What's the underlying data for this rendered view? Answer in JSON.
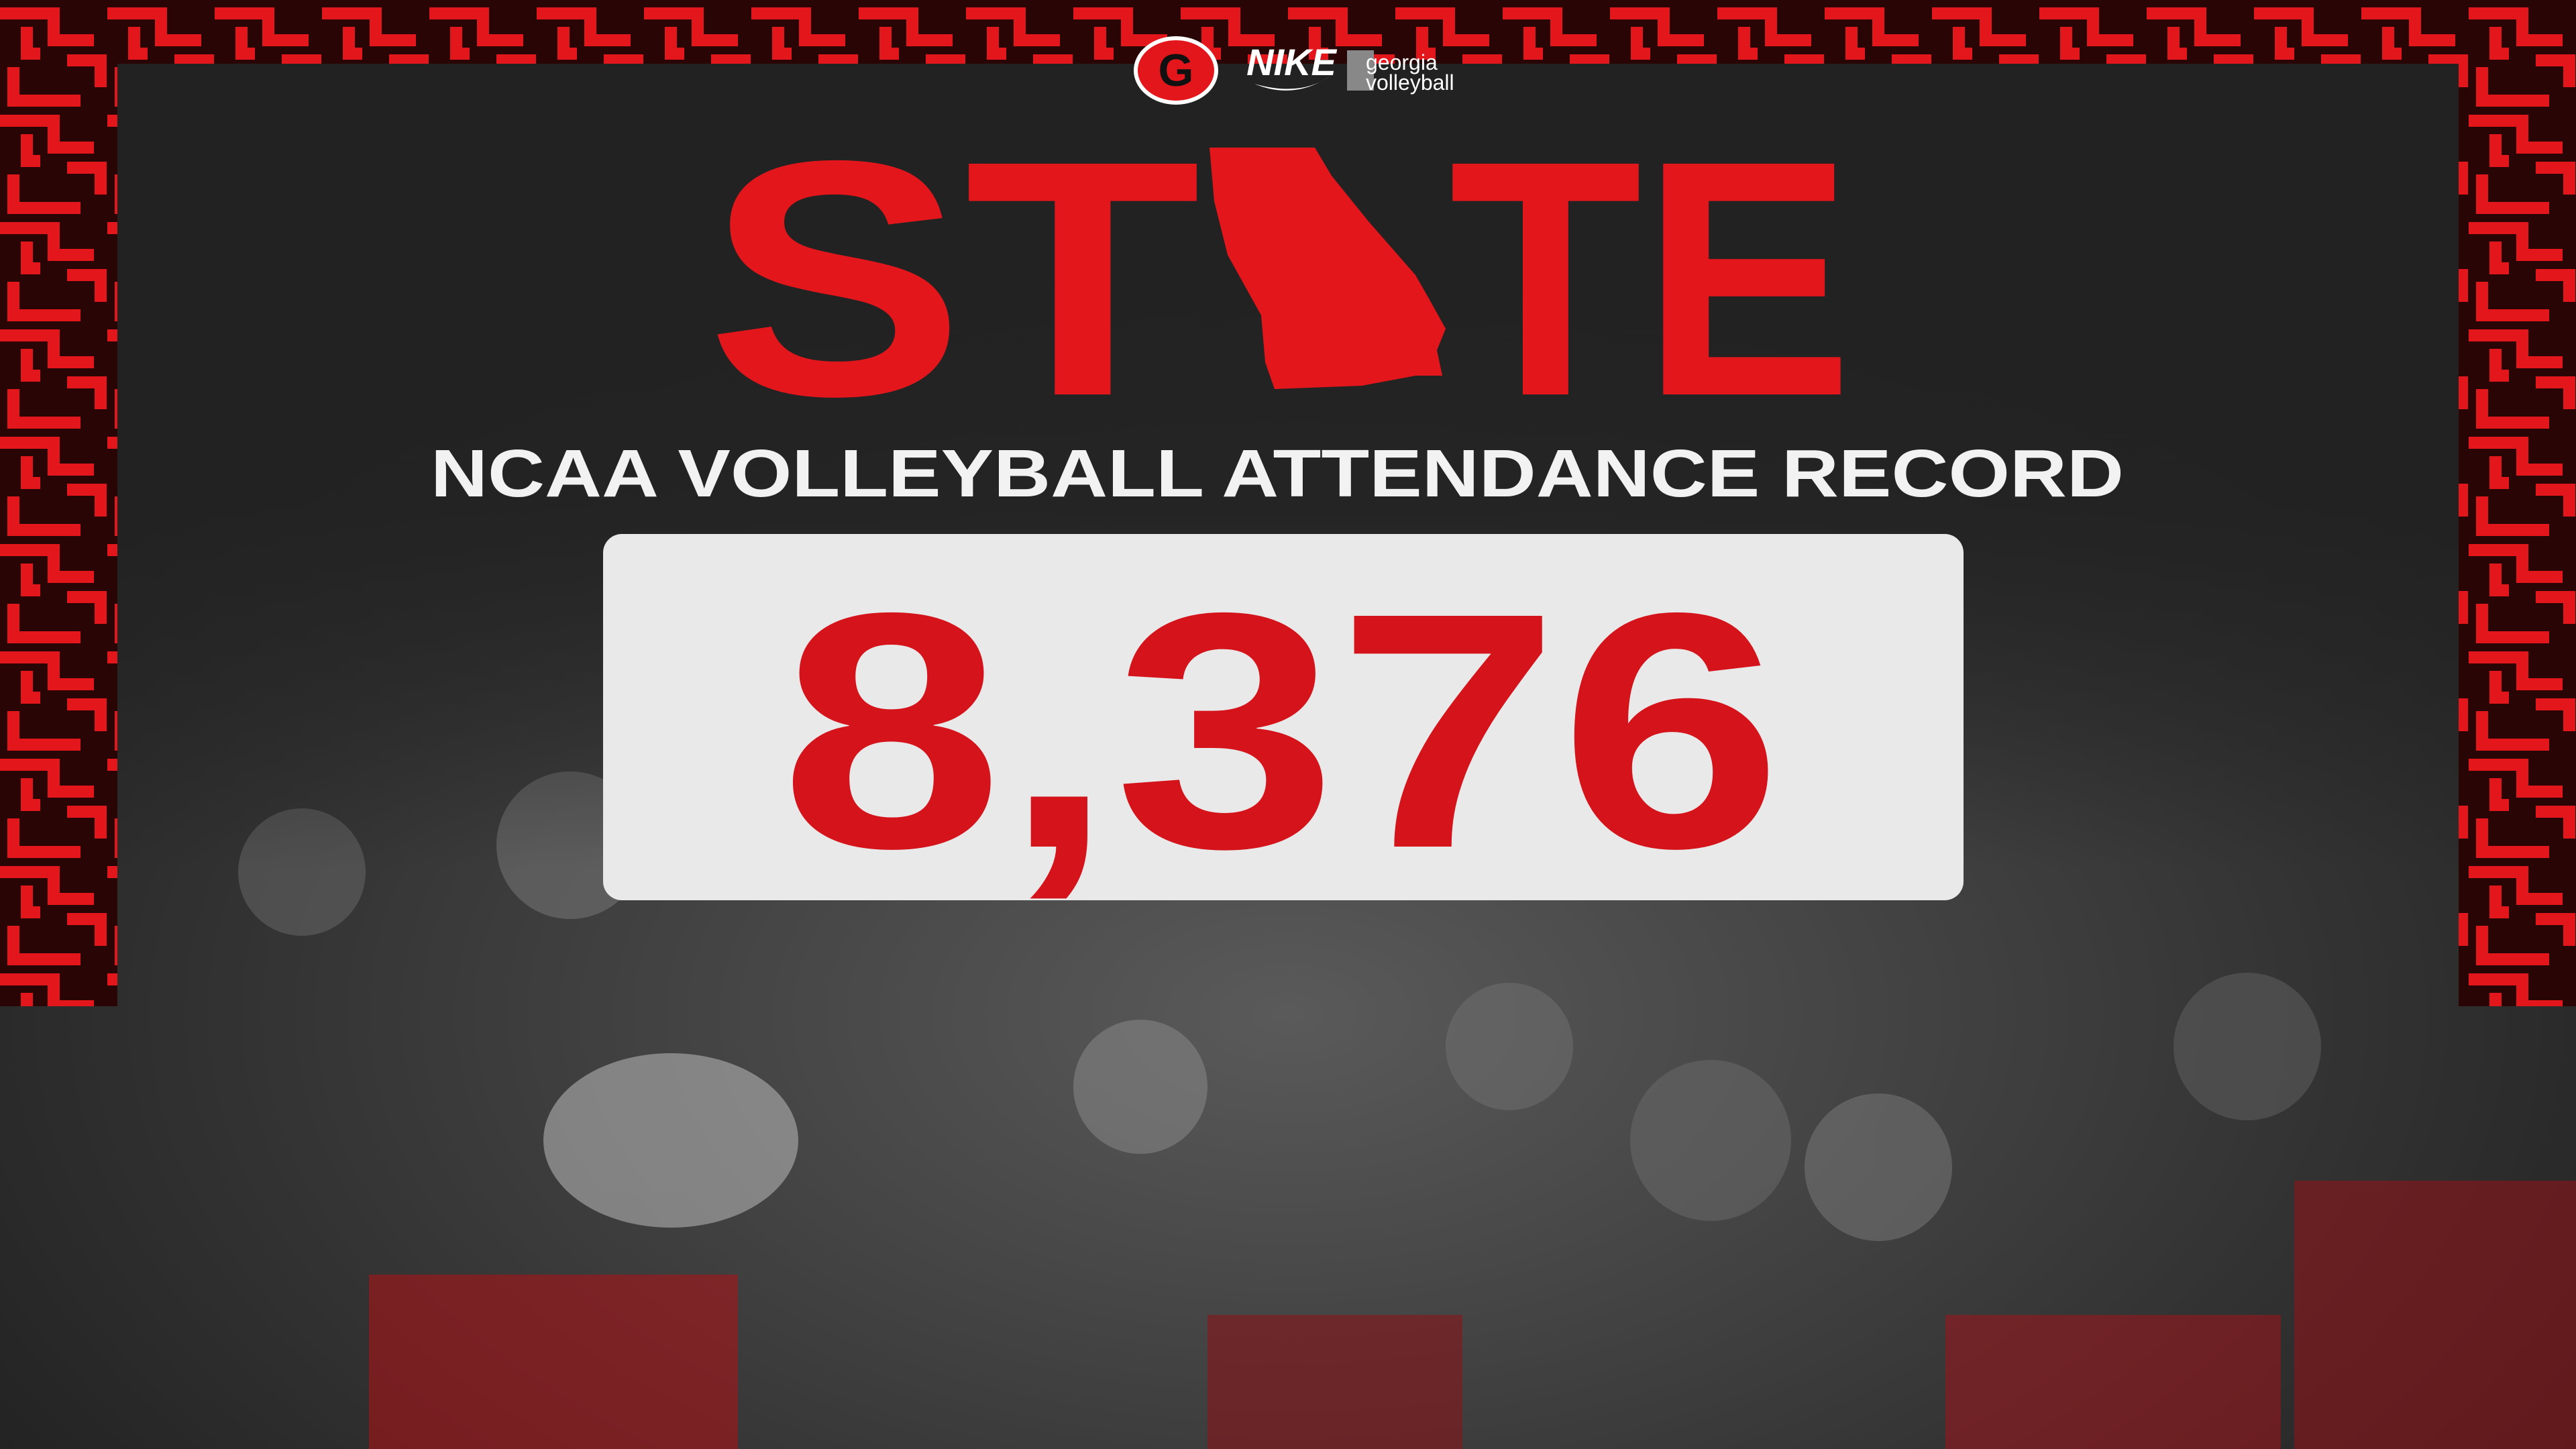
{
  "header": {
    "logo_letter": "G",
    "sponsor": "NIKE",
    "brand_line1": "georgia",
    "brand_line2": "volleyball"
  },
  "headline": {
    "left": "ST",
    "right": "TE"
  },
  "subtitle": "NCAA VOLLEYBALL ATTENDANCE RECORD",
  "record": "8,376"
}
